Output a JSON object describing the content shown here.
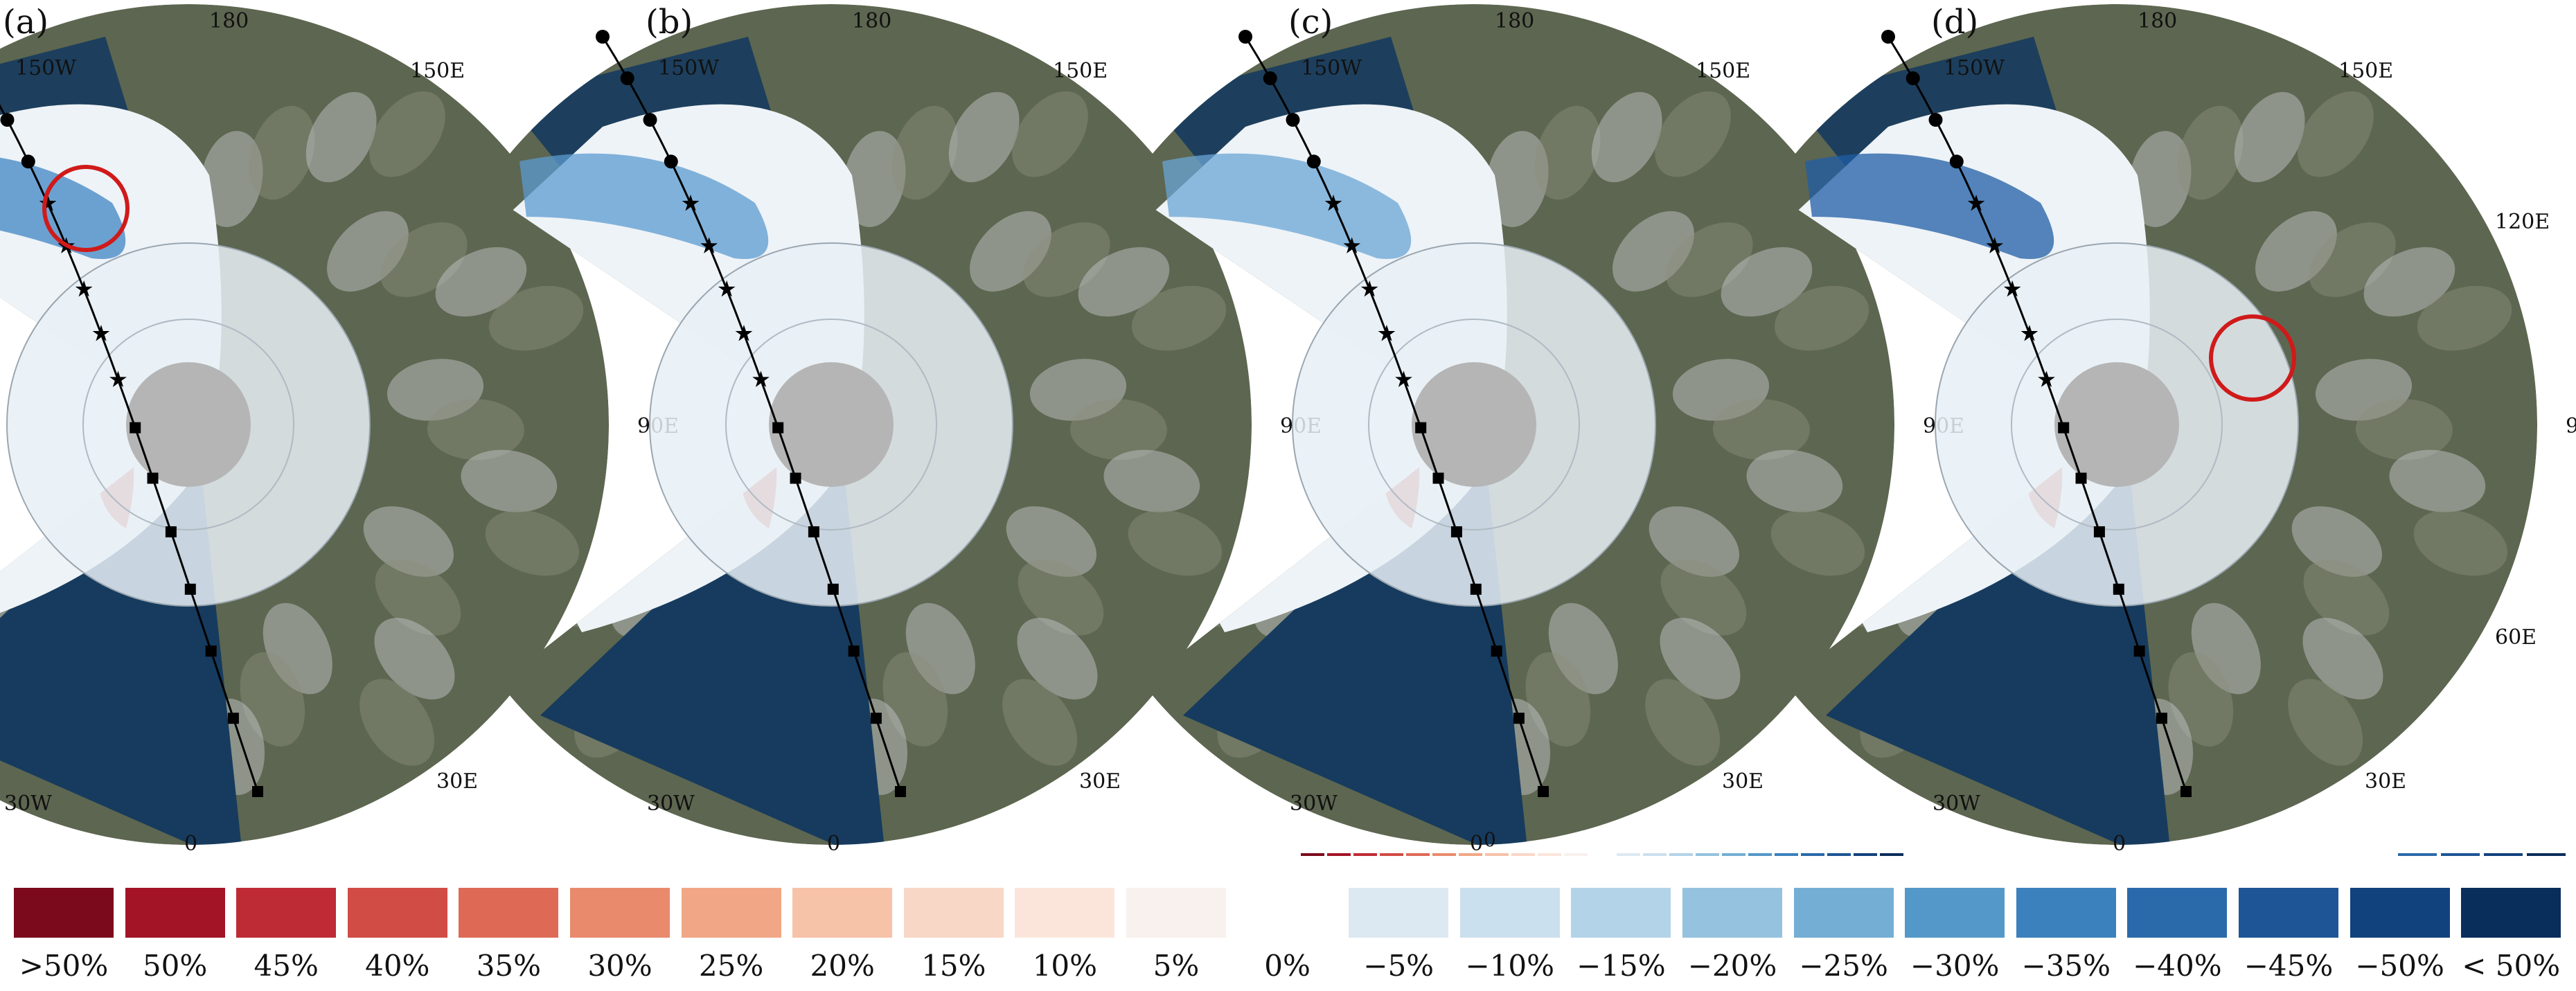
{
  "panels": [
    {
      "label": "(a)",
      "circle_marker": "upper-track"
    },
    {
      "label": "(b)",
      "circle_marker": null
    },
    {
      "label": "(c)",
      "circle_marker": null
    },
    {
      "label": "(d)",
      "circle_marker": "mid-track"
    }
  ],
  "map_labels": {
    "lon_180": "180",
    "lon_150w": "150W",
    "lon_150e": "150E",
    "lon_120e": "120E",
    "lon_90e": "90E",
    "lon_60e": "60E",
    "lon_30e": "30E",
    "lon_30w": "30W",
    "lon_0": "0"
  },
  "inner_panel_c_label": "0",
  "legend": {
    "items": [
      {
        "label": ">50%",
        "color": "#7a0a1c"
      },
      {
        "label": "50%",
        "color": "#a31427"
      },
      {
        "label": "45%",
        "color": "#bf2b35"
      },
      {
        "label": "40%",
        "color": "#d14c45"
      },
      {
        "label": "35%",
        "color": "#de6a56"
      },
      {
        "label": "30%",
        "color": "#e98a6d"
      },
      {
        "label": "25%",
        "color": "#f1a785"
      },
      {
        "label": "20%",
        "color": "#f6c2a8"
      },
      {
        "label": "15%",
        "color": "#f9d7c7"
      },
      {
        "label": "10%",
        "color": "#fbe5db"
      },
      {
        "label": "5%",
        "color": "#f8f1ee"
      },
      {
        "label": "0%",
        "color": "#ffffff"
      },
      {
        "label": "−5%",
        "color": "#dde9f2"
      },
      {
        "label": "−10%",
        "color": "#cbe0ee"
      },
      {
        "label": "−15%",
        "color": "#b3d3e8"
      },
      {
        "label": "−20%",
        "color": "#95c2de"
      },
      {
        "label": "−25%",
        "color": "#74aed4"
      },
      {
        "label": "−30%",
        "color": "#5498c9"
      },
      {
        "label": "−35%",
        "color": "#3b81bd"
      },
      {
        "label": "−40%",
        "color": "#2a6aab"
      },
      {
        "label": "−45%",
        "color": "#1d5596"
      },
      {
        "label": "−50%",
        "color": "#12427e"
      },
      {
        "label": "< 50%",
        "color": "#0a2e5c"
      }
    ]
  },
  "colors": {
    "ocean": "#163b5e",
    "land": "#5d6650",
    "ice": "#eef3f7",
    "pole": "#b5b5b5",
    "marker": "#d01a1a"
  }
}
